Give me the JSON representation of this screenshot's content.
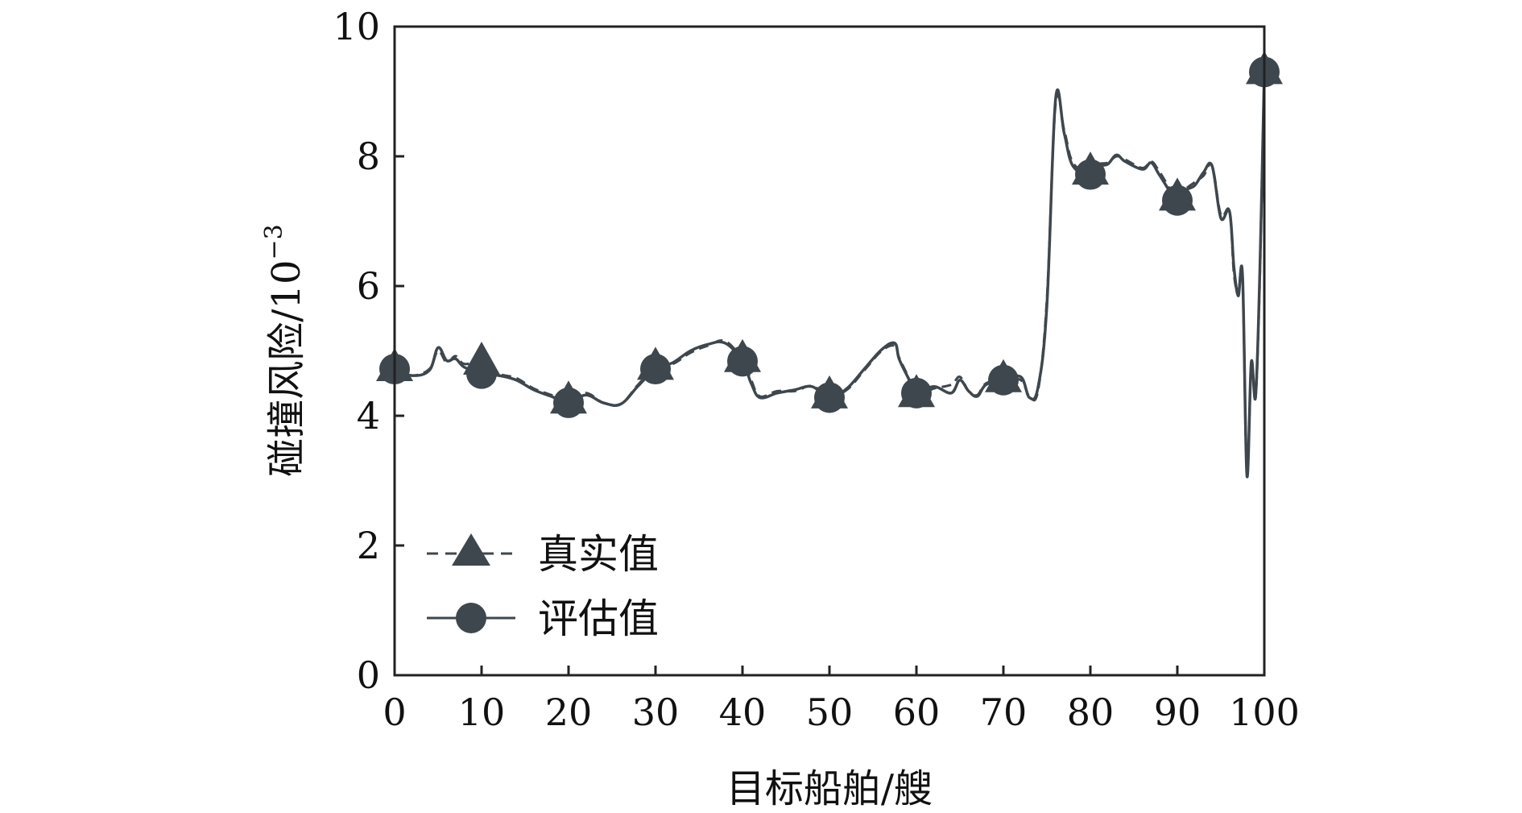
{
  "chart_data": {
    "type": "line",
    "xlabel": "目标船舶/艘",
    "ylabel": "碰撞风险/10",
    "ylabel_exponent": "−3",
    "xlim": [
      0,
      100
    ],
    "ylim": [
      0,
      10
    ],
    "x_ticks": [
      "0",
      "10",
      "20",
      "30",
      "40",
      "50",
      "60",
      "70",
      "80",
      "90",
      "100"
    ],
    "y_ticks": [
      "0",
      "2",
      "4",
      "6",
      "8",
      "10"
    ],
    "grid": false,
    "legend_position": "bottom-left",
    "colors": {
      "line": "#3e474d",
      "marker": "#3e474d"
    },
    "series": [
      {
        "name": "真实值",
        "line_style": "dashed",
        "marker": "triangle",
        "x": [
          0,
          2,
          4,
          5,
          6,
          7,
          8,
          10,
          12,
          14,
          16,
          18,
          20,
          22,
          24,
          26,
          28,
          30,
          32,
          34,
          36,
          38,
          40,
          41,
          42,
          44,
          46,
          48,
          50,
          52,
          54,
          56,
          57.5,
          58,
          59,
          60,
          62,
          64,
          65,
          66,
          67,
          68,
          70,
          72,
          73,
          74,
          75,
          76,
          77,
          78,
          80,
          81,
          82,
          83,
          84,
          86,
          87,
          88,
          90,
          91,
          92,
          93,
          94,
          95,
          96,
          96.5,
          97,
          97.5,
          98,
          98.5,
          99,
          99.5,
          100
        ],
        "y": [
          4.72,
          4.62,
          4.72,
          5.0,
          4.82,
          4.92,
          4.8,
          4.82,
          4.65,
          4.58,
          4.42,
          4.32,
          4.22,
          4.35,
          4.2,
          4.18,
          4.48,
          4.74,
          4.8,
          4.97,
          5.08,
          5.15,
          4.86,
          4.55,
          4.3,
          4.38,
          4.38,
          4.46,
          4.3,
          4.4,
          4.7,
          5.0,
          5.08,
          4.9,
          4.62,
          4.32,
          4.42,
          4.48,
          4.6,
          4.38,
          4.32,
          4.5,
          4.55,
          4.55,
          4.3,
          4.4,
          5.8,
          8.8,
          8.4,
          7.9,
          7.75,
          7.88,
          7.9,
          8.0,
          7.95,
          7.82,
          7.92,
          7.75,
          7.35,
          7.5,
          7.6,
          7.7,
          7.85,
          7.1,
          7.15,
          6.2,
          5.9,
          6.1,
          3.1,
          4.8,
          4.3,
          6.2,
          9.3
        ]
      },
      {
        "name": "评估值",
        "line_style": "solid",
        "marker": "circle",
        "x": [
          0,
          2,
          4,
          5,
          6,
          7,
          8,
          10,
          12,
          14,
          16,
          18,
          20,
          22,
          24,
          26,
          28,
          30,
          32,
          34,
          36,
          38,
          40,
          41,
          42,
          44,
          46,
          48,
          50,
          52,
          54,
          56,
          57.5,
          58,
          59,
          60,
          62,
          64,
          65,
          66,
          67,
          68,
          70,
          72,
          73,
          74,
          75,
          76,
          77,
          78,
          80,
          81,
          82,
          83,
          84,
          86,
          87,
          88,
          90,
          91,
          92,
          93,
          94,
          95,
          96,
          96.5,
          97,
          97.5,
          98,
          98.5,
          99,
          99.5,
          100
        ],
        "y": [
          4.72,
          4.62,
          4.7,
          5.05,
          4.85,
          4.88,
          4.75,
          4.65,
          4.62,
          4.55,
          4.4,
          4.3,
          4.2,
          4.32,
          4.2,
          4.18,
          4.46,
          4.72,
          4.82,
          5.0,
          5.1,
          5.12,
          4.84,
          4.5,
          4.28,
          4.35,
          4.4,
          4.45,
          4.28,
          4.42,
          4.72,
          5.02,
          5.12,
          4.88,
          4.6,
          4.35,
          4.45,
          4.35,
          4.55,
          4.38,
          4.3,
          4.48,
          4.55,
          4.6,
          4.28,
          4.45,
          5.7,
          8.88,
          8.35,
          7.85,
          7.72,
          7.85,
          7.88,
          8.02,
          7.92,
          7.8,
          7.9,
          7.7,
          7.32,
          7.48,
          7.55,
          7.75,
          7.85,
          7.05,
          7.15,
          6.3,
          5.85,
          6.15,
          3.08,
          4.82,
          4.3,
          6.3,
          9.3
        ]
      }
    ],
    "triangle_marker_x": [
      0,
      10,
      20,
      30,
      40,
      50,
      60,
      70,
      80,
      90,
      100
    ],
    "triangle_marker_y": [
      4.72,
      4.82,
      4.22,
      4.74,
      4.86,
      4.3,
      4.32,
      4.55,
      7.75,
      7.35,
      9.3
    ],
    "circle_marker_x": [
      0,
      10,
      20,
      30,
      40,
      50,
      60,
      70,
      80,
      90,
      100
    ],
    "circle_marker_y": [
      4.72,
      4.65,
      4.2,
      4.72,
      4.84,
      4.28,
      4.35,
      4.55,
      7.72,
      7.32,
      9.3
    ]
  }
}
